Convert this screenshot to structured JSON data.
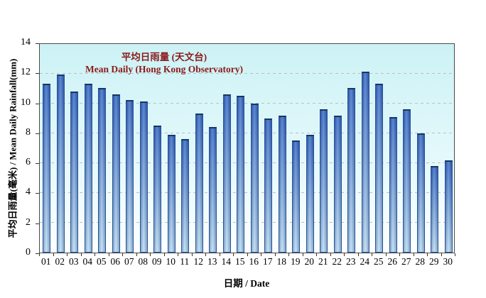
{
  "chart_data": {
    "type": "bar",
    "title_line1": "平均日雨量 (天文台)",
    "title_line2": "Mean Daily (Hong Kong Observatory)",
    "xlabel": "日期 / Date",
    "ylabel": "平均日雨量(毫米) / Mean Daily Rainfall(mm)",
    "categories": [
      "01",
      "02",
      "03",
      "04",
      "05",
      "06",
      "07",
      "08",
      "09",
      "10",
      "11",
      "12",
      "13",
      "14",
      "15",
      "16",
      "17",
      "18",
      "19",
      "20",
      "21",
      "22",
      "23",
      "24",
      "25",
      "26",
      "27",
      "28",
      "29",
      "30"
    ],
    "values": [
      11.3,
      11.9,
      10.8,
      11.3,
      11.0,
      10.6,
      10.2,
      10.1,
      8.5,
      7.9,
      7.6,
      9.3,
      8.4,
      10.6,
      10.5,
      10.0,
      9.0,
      9.2,
      7.5,
      7.9,
      9.6,
      9.2,
      11.0,
      12.1,
      11.3,
      9.1,
      9.6,
      8.0,
      5.8,
      6.2
    ],
    "ylim": [
      0,
      14
    ],
    "ytick_step": 2,
    "grid": "horizontal-dashed",
    "legend": "none",
    "colors": {
      "title": "#8b1a1a",
      "bar_top": "#2f62c4",
      "bar_mid": "#6a97d8",
      "bar_bottom": "#b9dcf4",
      "bar_border": "#2b5199",
      "bar_cap": "#17375e",
      "plot_bg_top": "#ccf2f5",
      "plot_bg_mid": "#e4f9fb",
      "plot_bg_bottom": "#fcffff",
      "gridline": "#bfbfbf"
    }
  }
}
